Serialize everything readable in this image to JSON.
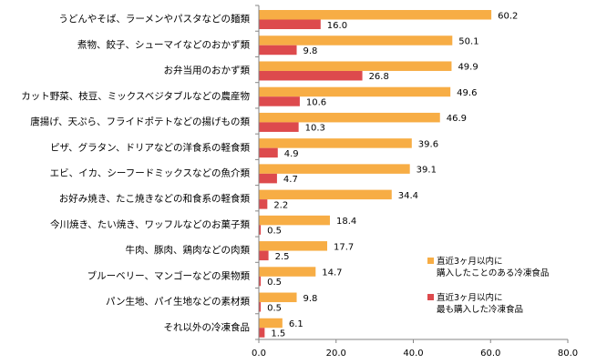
{
  "chart_data": {
    "type": "bar",
    "orientation": "horizontal",
    "categories": [
      "うどんやそば、ラーメンやパスタなどの麺類",
      "煮物、餃子、シューマイなどのおかず類",
      "お弁当用のおかず類",
      "カット野菜、枝豆、ミックスベジタブルなどの農産物",
      "唐揚げ、天ぷら、フライドポテトなどの揚げもの類",
      "ピザ、グラタン、ドリアなどの洋食系の軽食類",
      "エビ、イカ、シーフードミックスなどの魚介類",
      "お好み焼き、たこ焼きなどの和食系の軽食類",
      "今川焼き、たい焼き、ワッフルなどのお菓子類",
      "牛肉、豚肉、鶏肉などの肉類",
      "ブルーベリー、マンゴーなどの果物類",
      "パン生地、パイ生地などの素材類",
      "それ以外の冷凍食品"
    ],
    "series": [
      {
        "name": "直近3ヶ月以内に購入したことのある冷凍食品",
        "legend_lines": [
          "直近3ヶ月以内に",
          "購入したことのある冷凍食品"
        ],
        "color": "#F7AD45",
        "values": [
          60.2,
          50.1,
          49.9,
          49.6,
          46.9,
          39.6,
          39.1,
          34.4,
          18.4,
          17.7,
          14.7,
          9.8,
          6.1
        ],
        "value_labels": [
          "60.2",
          "50.1",
          "49.9",
          "49.6",
          "46.9",
          "39.6",
          "39.1",
          "34.4",
          "18.4",
          "17.7",
          "14.7",
          "9.8",
          "6.1"
        ]
      },
      {
        "name": "直近3ヶ月以内に最も購入した冷凍食品",
        "legend_lines": [
          "直近3ヶ月以内に",
          "最も購入した冷凍食品"
        ],
        "color": "#DD4A4D",
        "values": [
          16.0,
          9.8,
          26.8,
          10.6,
          10.3,
          4.9,
          4.7,
          2.2,
          0.5,
          2.5,
          0.5,
          0.5,
          1.5
        ],
        "value_labels": [
          "16.0",
          "9.8",
          "26.8",
          "10.6",
          "10.3",
          "4.9",
          "4.7",
          "2.2",
          "0.5",
          "2.5",
          "0.5",
          "0.5",
          "1.5"
        ]
      }
    ],
    "xlim": [
      0,
      80
    ],
    "x_ticks": [
      0,
      20,
      40,
      60,
      80
    ],
    "x_tick_labels": [
      "0.0",
      "20.0",
      "40.0",
      "60.0",
      "80.0"
    ],
    "title": "",
    "xlabel": "",
    "ylabel": "",
    "grid": false,
    "legend_position": "bottom-right"
  }
}
